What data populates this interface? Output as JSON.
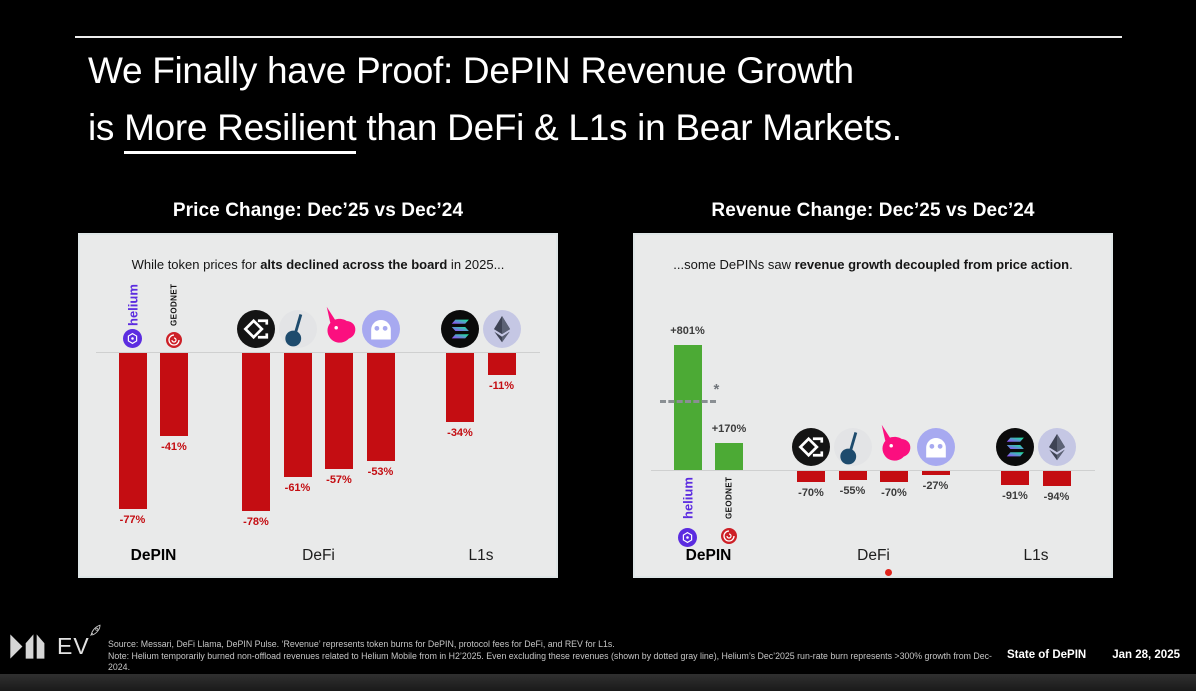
{
  "slide_title": {
    "line1": "We Finally have Proof: DePIN Revenue Growth",
    "line2_pre": "is ",
    "line2_underline": "More Resilient",
    "line2_post": " than DeFi & L1s in Bear Markets."
  },
  "chart_data": [
    {
      "type": "bar",
      "title": "Price Change: Dec’25 vs Dec’24",
      "subtitle": {
        "pre": "While token prices for ",
        "bold": "alts declined across the board",
        "post": " in 2025..."
      },
      "colors": {
        "negative_bar": "#c40d12",
        "positive_bar": "#4caa35",
        "value_label": "#c40d12"
      },
      "groups": [
        {
          "label": "DePIN",
          "emphasis": true,
          "items": [
            {
              "name": "Helium",
              "icon": "helium",
              "vertical_label": "helium",
              "value_pct": -77,
              "label": "-77%"
            },
            {
              "name": "GEODNET",
              "icon": "geodnet",
              "vertical_label": "GEODNET",
              "value_pct": -41,
              "label": "-41%"
            }
          ]
        },
        {
          "label": "DeFi",
          "items": [
            {
              "name": "Ethena",
              "icon": "ethena",
              "value_pct": -78,
              "label": "-78%"
            },
            {
              "name": "Pendle",
              "icon": "pendle",
              "value_pct": -61,
              "label": "-61%"
            },
            {
              "name": "Uniswap",
              "icon": "uniswap",
              "value_pct": -57,
              "label": "-57%"
            },
            {
              "name": "Aave",
              "icon": "aave",
              "value_pct": -53,
              "label": "-53%"
            }
          ]
        },
        {
          "label": "L1s",
          "items": [
            {
              "name": "Solana",
              "icon": "solana",
              "value_pct": -34,
              "label": "-34%"
            },
            {
              "name": "Ethereum",
              "icon": "ethereum",
              "value_pct": -11,
              "label": "-11%"
            }
          ]
        }
      ]
    },
    {
      "type": "bar",
      "title": "Revenue Change: Dec’25 vs Dec’24",
      "subtitle": {
        "pre": "...some DePINs saw ",
        "bold": "revenue growth decoupled from price action",
        "post": "."
      },
      "colors": {
        "negative_bar": "#c40d12",
        "positive_bar": "#4caa35",
        "value_label": "#3c3c3c"
      },
      "annotation": {
        "dashed_line_marker": "*",
        "dashed_line_color": "#8a8f93"
      },
      "alert_dot": true,
      "groups": [
        {
          "label": "DePIN",
          "emphasis": true,
          "items": [
            {
              "name": "Helium",
              "icon": "helium",
              "vertical_label": "helium",
              "value_pct": 801,
              "label": "+801%"
            },
            {
              "name": "GEODNET",
              "icon": "geodnet",
              "vertical_label": "GEODNET",
              "value_pct": 170,
              "label": "+170%"
            }
          ]
        },
        {
          "label": "DeFi",
          "items": [
            {
              "name": "Ethena",
              "icon": "ethena",
              "value_pct": -70,
              "label": "-70%"
            },
            {
              "name": "Pendle",
              "icon": "pendle",
              "value_pct": -55,
              "label": "-55%"
            },
            {
              "name": "Uniswap",
              "icon": "uniswap",
              "value_pct": -70,
              "label": "-70%"
            },
            {
              "name": "Aave",
              "icon": "aave",
              "value_pct": -27,
              "label": "-27%"
            }
          ]
        },
        {
          "label": "L1s",
          "items": [
            {
              "name": "Solana",
              "icon": "solana",
              "value_pct": -91,
              "label": "-91%"
            },
            {
              "name": "Ethereum",
              "icon": "ethereum",
              "value_pct": -94,
              "label": "-94%"
            }
          ]
        }
      ]
    }
  ],
  "footer": {
    "brand": "EV",
    "source_line1": "Source: Messari, DeFi Llama, DePIN Pulse. ‘Revenue’ represents token burns for DePIN, protocol fees for DeFi, and REV for L1s.",
    "source_line2": "Note: Helium temporarily burned non-offload revenues related to Helium Mobile from in H2’2025. Even excluding these revenues (shown by dotted gray line), Helium’s Dec’2025 run-rate burn represents >300% growth from Dec-2024.",
    "label": "State of DePIN",
    "date": "Jan 28, 2025"
  }
}
